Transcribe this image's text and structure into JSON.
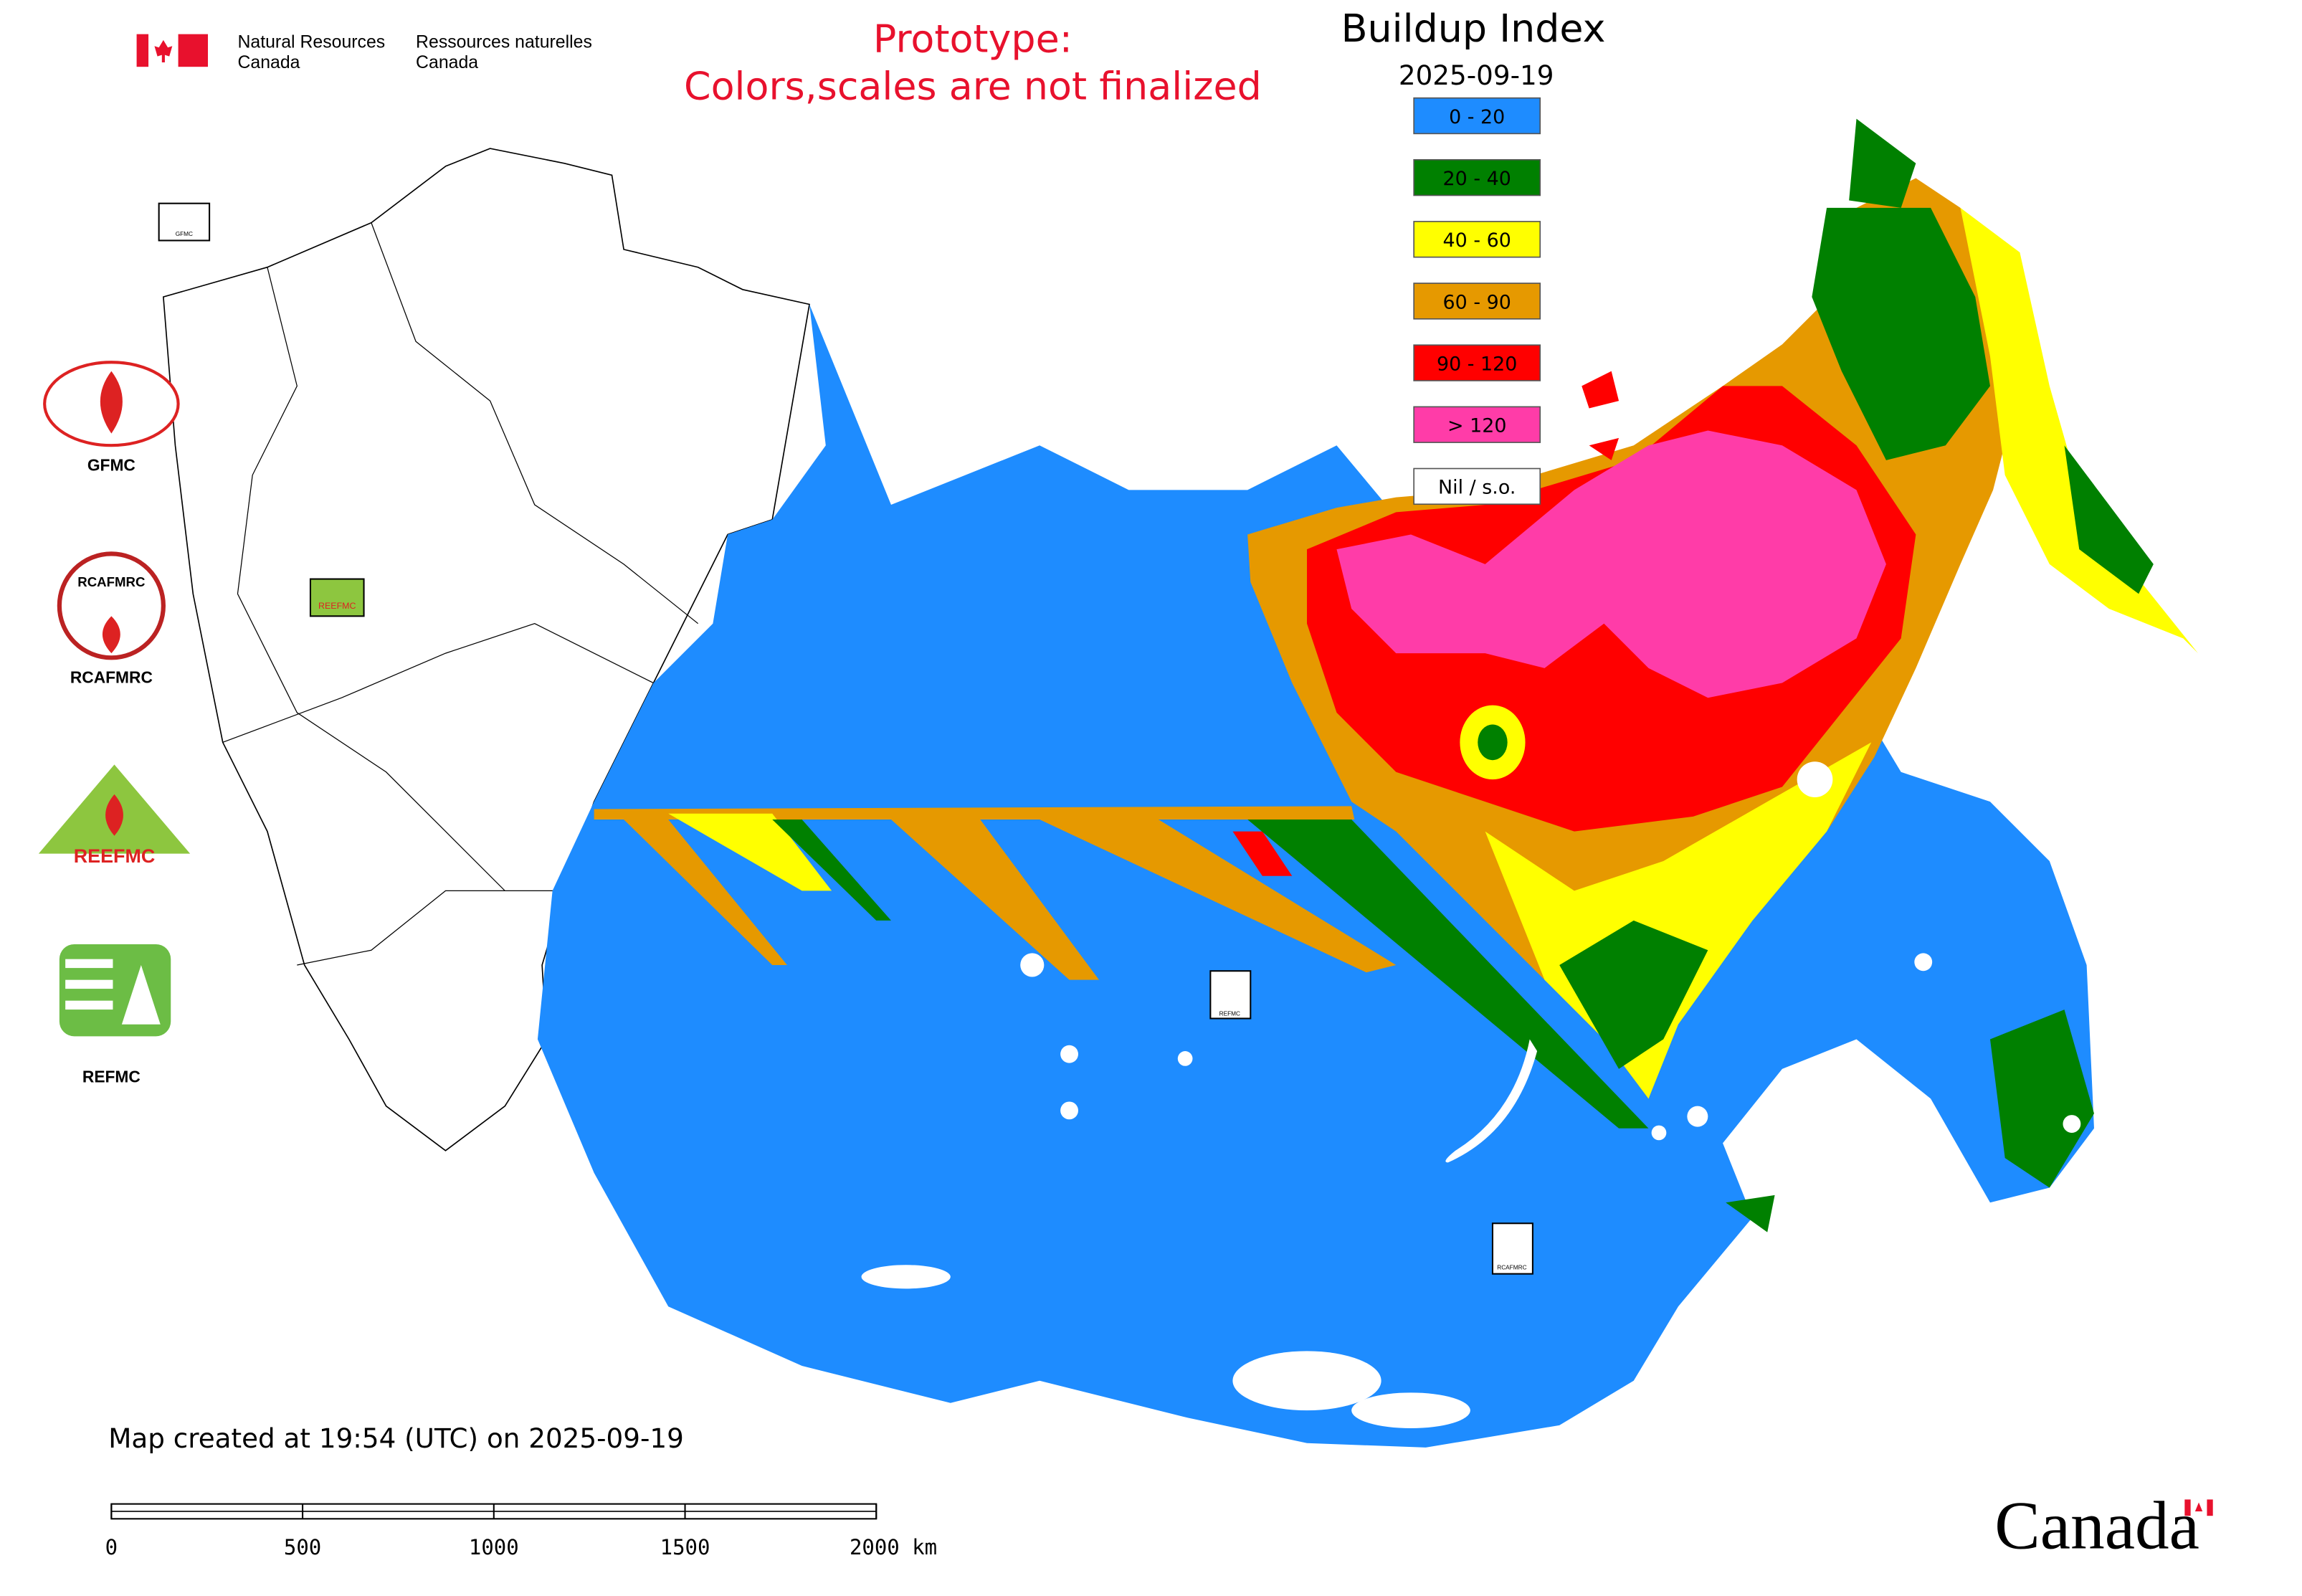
{
  "header": {
    "department_en": [
      "Natural Resources",
      "Canada"
    ],
    "department_fr": [
      "Ressources naturelles",
      "Canada"
    ],
    "notice": [
      "Prototype:",
      "Colors,scales are not finalized"
    ]
  },
  "legend": {
    "title": "Buildup Index",
    "date": "2025-09-19",
    "items": [
      {
        "label": "0 - 20",
        "color": "#1e8cff"
      },
      {
        "label": "20 - 40",
        "color": "#008000"
      },
      {
        "label": "40 - 60",
        "color": "#ffff00"
      },
      {
        "label": "60 - 90",
        "color": "#e69900"
      },
      {
        "label": "90 - 120",
        "color": "#ff0000"
      },
      {
        "label": "> 120",
        "color": "#ff3ca8"
      },
      {
        "label": "Nil / s.o.",
        "color": "#ffffff"
      }
    ]
  },
  "logos": [
    "GFMC",
    "RCAFMRC",
    "REFMC"
  ],
  "logo_texts": [
    "RCAFMRC",
    "REEFMC"
  ],
  "map_labels": [
    "GFMC",
    "REEFMC",
    "REFMC",
    "RCAFMRC"
  ],
  "footer": {
    "created": "Map created at 19:54 (UTC) on 2025-09-19",
    "scale_labels": [
      "0",
      "500",
      "1000",
      "1500",
      "2000 km"
    ],
    "wordmark": "Canada"
  }
}
